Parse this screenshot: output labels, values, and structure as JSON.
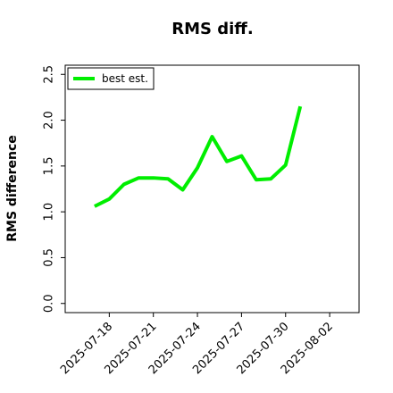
{
  "chart_data": {
    "type": "line",
    "title": "RMS diff.",
    "y_label": "RMS difference",
    "x": [
      "2025-07-17",
      "2025-07-18",
      "2025-07-19",
      "2025-07-20",
      "2025-07-21",
      "2025-07-22",
      "2025-07-23",
      "2025-07-24",
      "2025-07-25",
      "2025-07-26",
      "2025-07-27",
      "2025-07-28",
      "2025-07-29",
      "2025-07-30",
      "2025-07-31"
    ],
    "series": [
      {
        "name": "best est.",
        "color": "#00ee00",
        "values": [
          1.06,
          1.14,
          1.3,
          1.37,
          1.37,
          1.36,
          1.24,
          1.48,
          1.82,
          1.55,
          1.61,
          1.35,
          1.36,
          1.51,
          2.15
        ]
      }
    ],
    "xlim": [
      "2025-07-15",
      "2025-08-04"
    ],
    "xticks": [
      "2025-07-18",
      "2025-07-21",
      "2025-07-24",
      "2025-07-27",
      "2025-07-30",
      "2025-08-02"
    ],
    "ylim": [
      -0.1,
      2.6
    ],
    "yticks": [
      0.0,
      0.5,
      1.0,
      1.5,
      2.0,
      2.5
    ],
    "legend": "upper left"
  }
}
